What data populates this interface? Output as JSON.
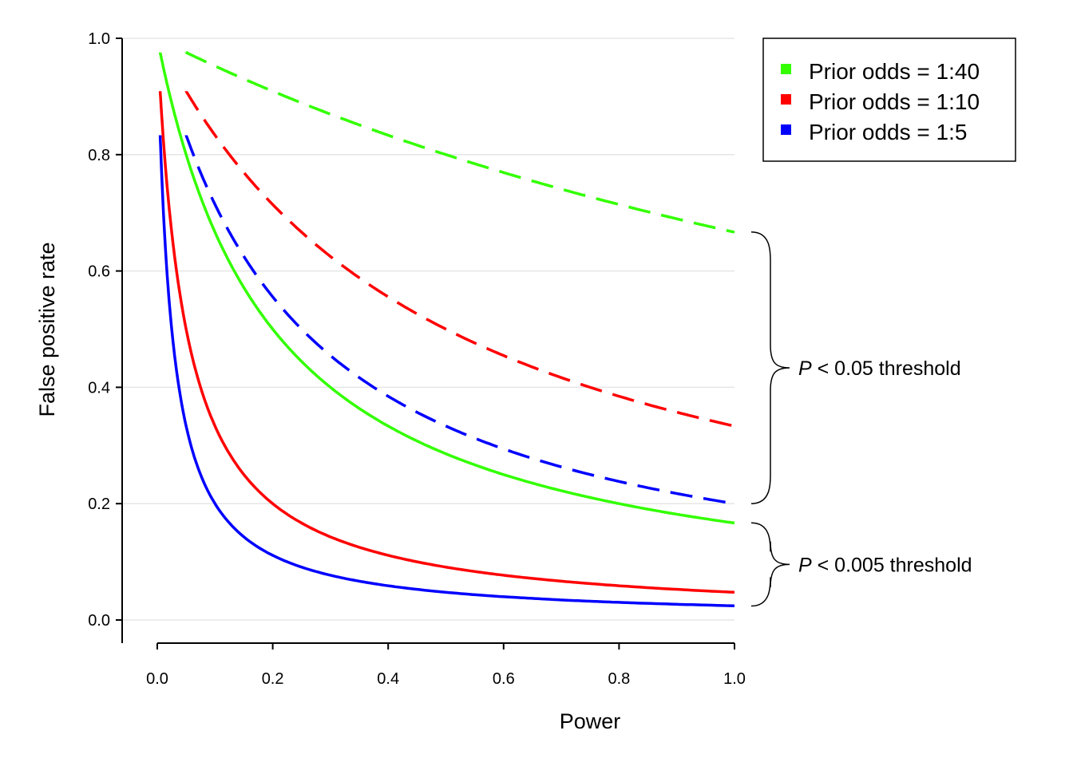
{
  "chart_data": {
    "type": "line",
    "xlabel": "Power",
    "ylabel": "False positive rate",
    "xlim": [
      -0.06,
      1.0
    ],
    "ylim": [
      -0.04,
      1.0
    ],
    "x_ticks": [
      "0.0",
      "0.2",
      "0.4",
      "0.6",
      "0.8",
      "1.0"
    ],
    "y_ticks": [
      "0.0",
      "0.2",
      "0.4",
      "0.6",
      "0.8",
      "1.0"
    ],
    "grid": "horizontal",
    "legend_position": "top-right",
    "legend": [
      {
        "label": "Prior odds = 1:40",
        "color": "#33ff00"
      },
      {
        "label": "Prior odds = 1:10",
        "color": "#ff0000"
      },
      {
        "label": "Prior odds = 1:5",
        "color": "#0000ff"
      }
    ],
    "series": [
      {
        "odds": 40,
        "alpha": 0.05,
        "style": "dashed",
        "color": "#33ff00",
        "x": [
          0.05,
          0.1,
          0.2,
          0.3,
          0.4,
          0.5,
          0.6,
          0.7,
          0.8,
          0.9,
          1.0
        ],
        "y": [
          0.976,
          0.952,
          0.909,
          0.87,
          0.833,
          0.8,
          0.769,
          0.741,
          0.714,
          0.69,
          0.667
        ]
      },
      {
        "odds": 10,
        "alpha": 0.05,
        "style": "dashed",
        "color": "#ff0000",
        "x": [
          0.05,
          0.1,
          0.2,
          0.3,
          0.4,
          0.5,
          0.6,
          0.7,
          0.8,
          0.9,
          1.0
        ],
        "y": [
          0.909,
          0.833,
          0.714,
          0.625,
          0.556,
          0.5,
          0.455,
          0.417,
          0.385,
          0.357,
          0.333
        ]
      },
      {
        "odds": 5,
        "alpha": 0.05,
        "style": "dashed",
        "color": "#0000ff",
        "x": [
          0.05,
          0.1,
          0.2,
          0.3,
          0.4,
          0.5,
          0.6,
          0.7,
          0.8,
          0.9,
          1.0
        ],
        "y": [
          0.833,
          0.714,
          0.556,
          0.455,
          0.385,
          0.333,
          0.294,
          0.263,
          0.238,
          0.217,
          0.2
        ]
      },
      {
        "odds": 40,
        "alpha": 0.005,
        "style": "solid",
        "color": "#33ff00",
        "x": [
          0.005,
          0.05,
          0.1,
          0.2,
          0.3,
          0.4,
          0.5,
          0.6,
          0.7,
          0.8,
          0.9,
          1.0
        ],
        "y": [
          0.976,
          0.8,
          0.667,
          0.5,
          0.4,
          0.333,
          0.286,
          0.25,
          0.222,
          0.2,
          0.182,
          0.167
        ]
      },
      {
        "odds": 10,
        "alpha": 0.005,
        "style": "solid",
        "color": "#ff0000",
        "x": [
          0.005,
          0.05,
          0.1,
          0.2,
          0.3,
          0.4,
          0.5,
          0.6,
          0.7,
          0.8,
          0.9,
          1.0
        ],
        "y": [
          0.909,
          0.5,
          0.333,
          0.2,
          0.143,
          0.111,
          0.091,
          0.077,
          0.067,
          0.059,
          0.053,
          0.048
        ]
      },
      {
        "odds": 5,
        "alpha": 0.005,
        "style": "solid",
        "color": "#0000ff",
        "x": [
          0.005,
          0.05,
          0.1,
          0.2,
          0.3,
          0.4,
          0.5,
          0.6,
          0.7,
          0.8,
          0.9,
          1.0
        ],
        "y": [
          0.833,
          0.333,
          0.2,
          0.111,
          0.077,
          0.059,
          0.048,
          0.04,
          0.034,
          0.03,
          0.027,
          0.024
        ]
      }
    ],
    "annotations": [
      {
        "prefix": "P",
        "text": " < 0.05 threshold",
        "brace_y": [
          0.2,
          0.667
        ]
      },
      {
        "prefix": "P",
        "text": " < 0.005 threshold",
        "brace_y": [
          0.024,
          0.167
        ]
      }
    ]
  }
}
